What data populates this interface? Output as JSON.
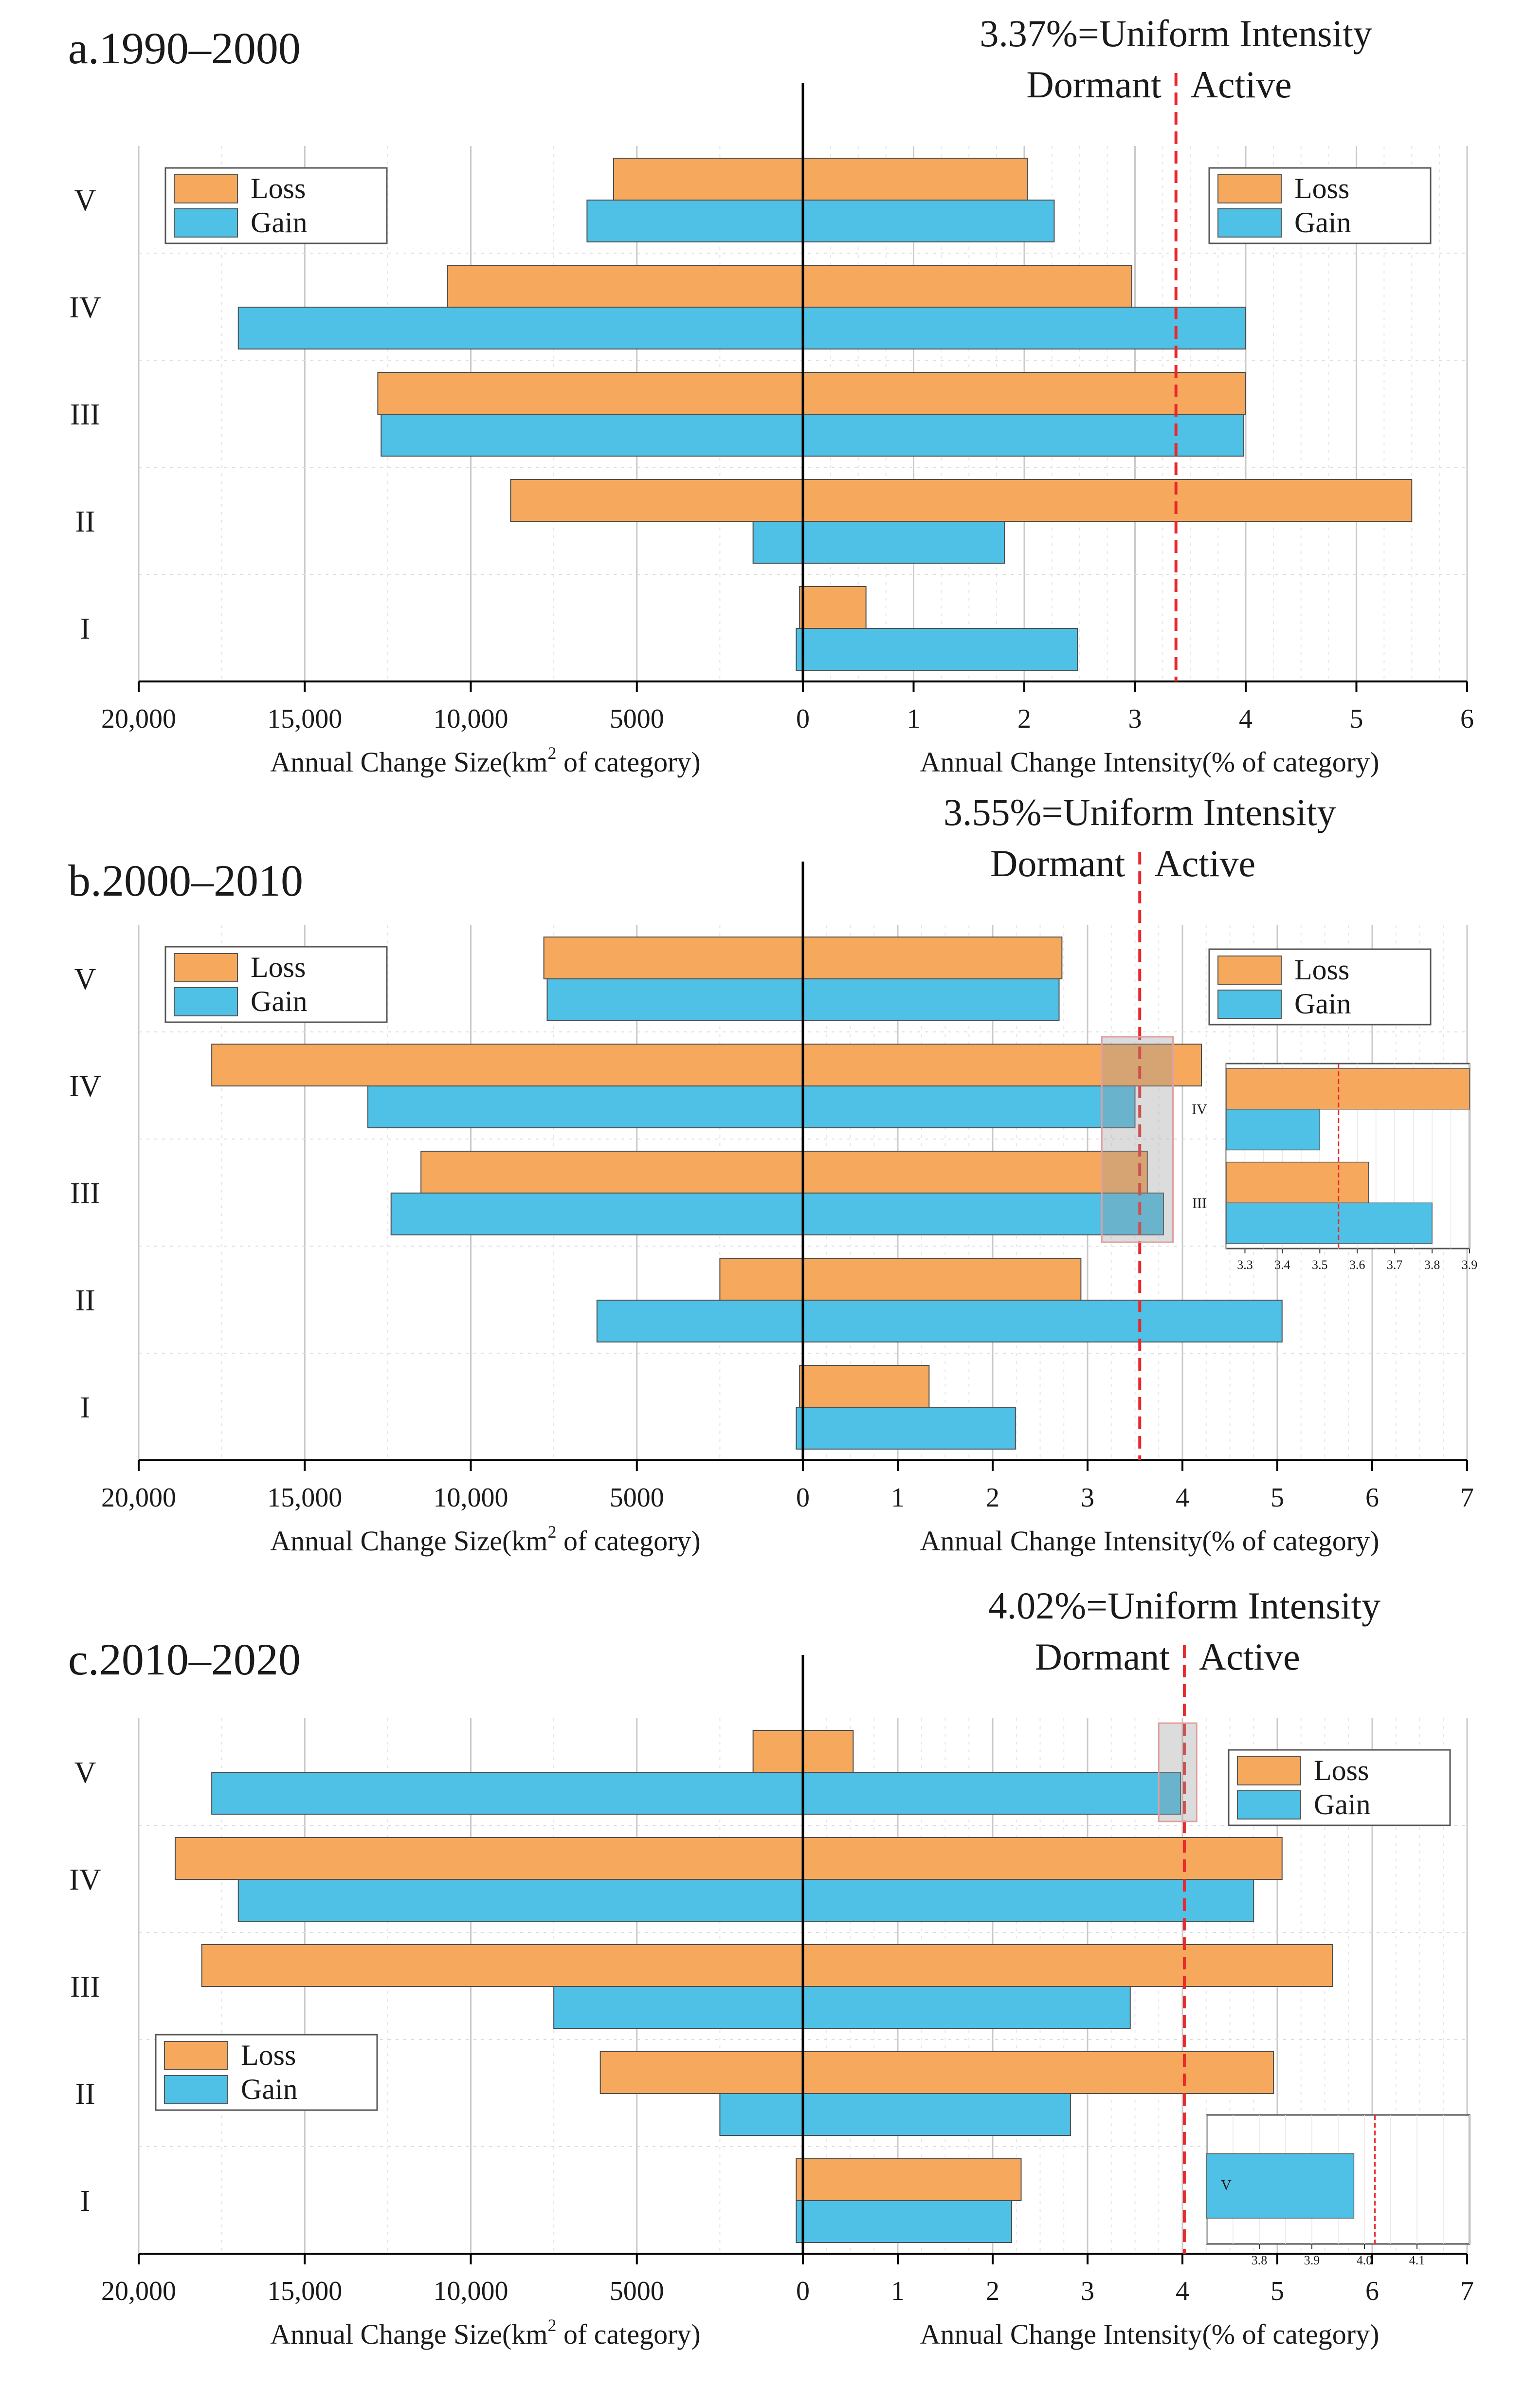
{
  "colors": {
    "loss": "#F6A95D",
    "gain": "#4FC1E6",
    "uniform_line": "#E8282B",
    "axis": "#000000",
    "grid": "#c9c9c9"
  },
  "chart_data": [
    {
      "type": "bar",
      "title": "a.1990–2000",
      "categories": [
        "V",
        "IV",
        "III",
        "II",
        "I"
      ],
      "uniform_intensity": 3.37,
      "uniform_label": "3.37%=Uniform Intensity",
      "dormant_label": "Dormant",
      "active_label": "Active",
      "size_axis": {
        "label_main": "Annual Change Size(km",
        "label_sup": "2",
        "label_end": " of category)",
        "ticks": [
          0,
          5000,
          10000,
          15000,
          20000
        ],
        "tick_labels": [
          "0",
          "5000",
          "10,000",
          "15,000",
          "20,000"
        ],
        "xlim": [
          0,
          20000
        ]
      },
      "intensity_axis": {
        "label": "Annual Change Intensity(% of category)",
        "ticks": [
          0,
          1,
          2,
          3,
          4,
          5,
          6
        ],
        "tick_labels": [
          "0",
          "1",
          "2",
          "3",
          "4",
          "5",
          "6"
        ],
        "xlim": [
          0,
          6
        ]
      },
      "size_series": [
        {
          "name": "Loss",
          "values": [
            5700,
            10700,
            12800,
            8800,
            100
          ]
        },
        {
          "name": "Gain",
          "values": [
            6500,
            17000,
            12700,
            1500,
            200
          ]
        }
      ],
      "intensity_series": [
        {
          "name": "Loss",
          "values": [
            2.03,
            2.97,
            4.0,
            5.5,
            0.57
          ]
        },
        {
          "name": "Gain",
          "values": [
            2.27,
            4.0,
            3.98,
            1.82,
            2.48
          ]
        }
      ],
      "legend_size": {
        "position": "top-left",
        "loss": "Loss",
        "gain": "Gain"
      },
      "legend_intensity": {
        "position": "top-right",
        "loss": "Loss",
        "gain": "Gain"
      }
    },
    {
      "type": "bar",
      "title": "b.2000–2010",
      "categories": [
        "V",
        "IV",
        "III",
        "II",
        "I"
      ],
      "uniform_intensity": 3.55,
      "uniform_label": "3.55%=Uniform Intensity",
      "dormant_label": "Dormant",
      "active_label": "Active",
      "size_axis": {
        "label_main": "Annual Change Size(km",
        "label_sup": "2",
        "label_end": " of category)",
        "ticks": [
          0,
          5000,
          10000,
          15000,
          20000
        ],
        "tick_labels": [
          "0",
          "5000",
          "10,000",
          "15,000",
          "20,000"
        ],
        "xlim": [
          0,
          20000
        ]
      },
      "intensity_axis": {
        "label": "Annual Change Intensity(% of category)",
        "ticks": [
          0,
          1,
          2,
          3,
          4,
          5,
          6,
          7
        ],
        "tick_labels": [
          "0",
          "1",
          "2",
          "3",
          "4",
          "5",
          "6",
          "7"
        ],
        "xlim": [
          0,
          7
        ]
      },
      "size_series": [
        {
          "name": "Loss",
          "values": [
            7800,
            17800,
            11500,
            2500,
            100
          ]
        },
        {
          "name": "Gain",
          "values": [
            7700,
            13100,
            12400,
            6200,
            200
          ]
        }
      ],
      "intensity_series": [
        {
          "name": "Loss",
          "values": [
            2.73,
            4.2,
            3.63,
            2.93,
            1.33
          ]
        },
        {
          "name": "Gain",
          "values": [
            2.7,
            3.5,
            3.8,
            5.05,
            2.24
          ]
        }
      ],
      "legend_size": {
        "position": "top-left",
        "loss": "Loss",
        "gain": "Gain"
      },
      "legend_intensity": {
        "position": "top-right",
        "loss": "Loss",
        "gain": "Gain"
      },
      "inset": {
        "categories": [
          "IV",
          "III"
        ],
        "xlim": [
          3.25,
          3.9
        ],
        "ticks": [
          3.3,
          3.4,
          3.5,
          3.6,
          3.7,
          3.8,
          3.9
        ],
        "tick_labels": [
          "3.3",
          "3.4",
          "3.5",
          "3.6",
          "3.7",
          "3.8",
          "3.9"
        ],
        "zoom_range": [
          3.15,
          3.9
        ]
      }
    },
    {
      "type": "bar",
      "title": "c.2010–2020",
      "categories": [
        "V",
        "IV",
        "III",
        "II",
        "I"
      ],
      "uniform_intensity": 4.02,
      "uniform_label": "4.02%=Uniform Intensity",
      "dormant_label": "Dormant",
      "active_label": "Active",
      "size_axis": {
        "label_main": "Annual Change Size(km",
        "label_sup": "2",
        "label_end": " of category)",
        "ticks": [
          0,
          5000,
          10000,
          15000,
          20000
        ],
        "tick_labels": [
          "0",
          "5000",
          "10,000",
          "15,000",
          "20,000"
        ],
        "xlim": [
          0,
          20000
        ]
      },
      "intensity_axis": {
        "label": "Annual Change Intensity(% of category)",
        "ticks": [
          0,
          1,
          2,
          3,
          4,
          5,
          6,
          7
        ],
        "tick_labels": [
          "0",
          "1",
          "2",
          "3",
          "4",
          "5",
          "6",
          "7"
        ],
        "xlim": [
          0,
          7
        ]
      },
      "size_series": [
        {
          "name": "Loss",
          "values": [
            1500,
            18900,
            18100,
            6100,
            200
          ]
        },
        {
          "name": "Gain",
          "values": [
            17800,
            17000,
            7500,
            2500,
            200
          ]
        }
      ],
      "intensity_series": [
        {
          "name": "Loss",
          "values": [
            0.53,
            5.05,
            5.58,
            4.96,
            2.3
          ]
        },
        {
          "name": "Gain",
          "values": [
            3.98,
            4.75,
            3.45,
            2.82,
            2.2
          ]
        }
      ],
      "legend_size": {
        "position": "middle-left",
        "loss": "Loss",
        "gain": "Gain"
      },
      "legend_intensity": {
        "position": "top-right",
        "loss": "Loss",
        "gain": "Gain"
      },
      "inset": {
        "categories": [
          "V"
        ],
        "xlim": [
          3.7,
          4.2
        ],
        "ticks": [
          3.8,
          3.9,
          4.0,
          4.1
        ],
        "tick_labels": [
          "3.8",
          "3.9",
          "4.0",
          "4.1"
        ],
        "zoom_range": [
          3.75,
          4.15
        ]
      }
    }
  ]
}
